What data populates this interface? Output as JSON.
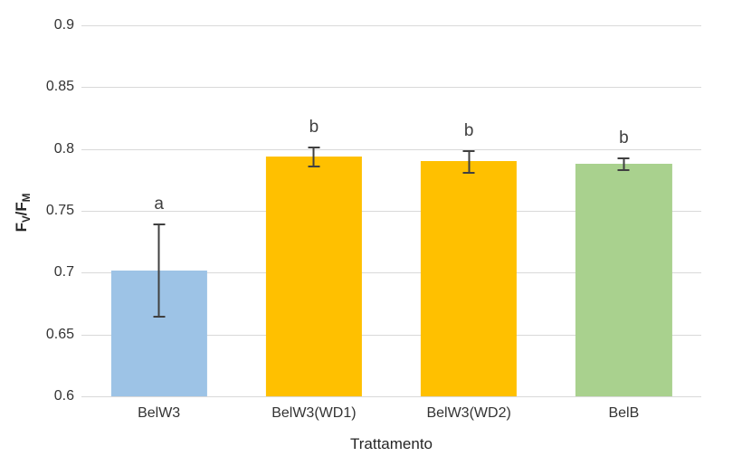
{
  "chart_data": {
    "type": "bar",
    "title": "",
    "xlabel": "Trattamento",
    "ylabel": {
      "numerator": "F",
      "numerator_sub": "V",
      "divider": "/",
      "denominator": "F",
      "denominator_sub": "M"
    },
    "ylim": [
      0.6,
      0.9
    ],
    "yticks": [
      0.9,
      0.85,
      0.8,
      0.75,
      0.7,
      0.65,
      0.6
    ],
    "grid": true,
    "legend": false,
    "categories": [
      "BelW3",
      "BelW3(WD1)",
      "BelW3(WD2)",
      "BelB"
    ],
    "values": [
      0.702,
      0.794,
      0.79,
      0.788
    ],
    "errors_plus": [
      0.038,
      0.008,
      0.009,
      0.005
    ],
    "errors_minus": [
      0.038,
      0.009,
      0.01,
      0.006
    ],
    "significance_letters": [
      "a",
      "b",
      "b",
      "b"
    ],
    "bar_colors": [
      "#9DC3E6",
      "#FFC000",
      "#FFC000",
      "#A9D18E"
    ],
    "gridline_color": "#D9D9D9",
    "error_bar_color": "#404040"
  }
}
